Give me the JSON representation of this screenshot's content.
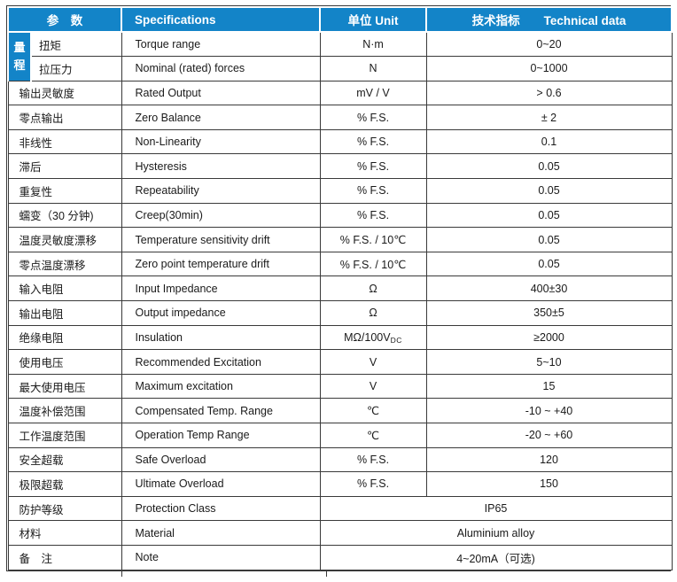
{
  "table": {
    "headers": {
      "param_zh": "参　数",
      "spec": "Specifications",
      "unit": "单位 Unit",
      "tech": "技术指标　　Technical data"
    },
    "range_group_label": "量程",
    "rows": [
      {
        "group": "range",
        "param": "扭矩",
        "spec": "Torque range",
        "unit": "N·m",
        "data": "0~20"
      },
      {
        "group": "range",
        "param": "拉压力",
        "spec": "Nominal (rated) forces",
        "unit": "N",
        "data": "0~1000"
      },
      {
        "param": "输出灵敏度",
        "spec": "Rated Output",
        "unit": "mV / V",
        "data": "> 0.6"
      },
      {
        "param": "零点输出",
        "spec": "Zero Balance",
        "unit": "% F.S.",
        "data": "± 2"
      },
      {
        "param": "非线性",
        "spec": "Non-Linearity",
        "unit": "% F.S.",
        "data": "0.1"
      },
      {
        "param": "滞后",
        "spec": "Hysteresis",
        "unit": "% F.S.",
        "data": "0.05"
      },
      {
        "param": "重复性",
        "spec": "Repeatability",
        "unit": "% F.S.",
        "data": "0.05"
      },
      {
        "param": "蠕变（30 分钟)",
        "spec": "Creep(30min)",
        "unit": "% F.S.",
        "data": "0.05"
      },
      {
        "param": "温度灵敏度漂移",
        "spec": "Temperature sensitivity drift",
        "unit": "% F.S. / 10℃",
        "data": "0.05"
      },
      {
        "param": "零点温度漂移",
        "spec": "Zero point temperature drift",
        "unit": "% F.S. / 10℃",
        "data": "0.05"
      },
      {
        "param": "输入电阻",
        "spec": "Input Impedance",
        "unit": "Ω",
        "data": "400±30"
      },
      {
        "param": "输出电阻",
        "spec": "Output impedance",
        "unit": "Ω",
        "data": "350±5"
      },
      {
        "param": "绝缘电阻",
        "spec": "Insulation",
        "unit": "MΩ/100V",
        "unit_sub": "DC",
        "data": "≥2000"
      },
      {
        "param": "使用电压",
        "spec": "Recommended Excitation",
        "unit": "V",
        "data": "5~10"
      },
      {
        "param": "最大使用电压",
        "spec": "Maximum excitation",
        "unit": "V",
        "data": "15"
      },
      {
        "param": "温度补偿范围",
        "spec": "Compensated Temp. Range",
        "unit": "℃",
        "data": "-10 ~ +40"
      },
      {
        "param": "工作温度范围",
        "spec": "Operation Temp Range",
        "unit": "℃",
        "data": "-20 ~ +60"
      },
      {
        "param": "安全超载",
        "spec": "Safe Overload",
        "unit": "% F.S.",
        "data": "120"
      },
      {
        "param": "极限超载",
        "spec": "Ultimate Overload",
        "unit": "% F.S.",
        "data": "150"
      },
      {
        "merged": true,
        "param": "防护等级",
        "spec": "Protection Class",
        "data": "IP65"
      },
      {
        "merged": true,
        "param": "材料",
        "spec": "Material",
        "data": "Aluminium alloy"
      },
      {
        "merged": true,
        "param": "备　注",
        "spec": "Note",
        "data": "4~20mA（可选)"
      }
    ],
    "colors": {
      "header_bg": "#1384c8",
      "header_text": "#ffffff",
      "grid": "#3a3a3a",
      "body_text": "#1a1a1a"
    }
  }
}
